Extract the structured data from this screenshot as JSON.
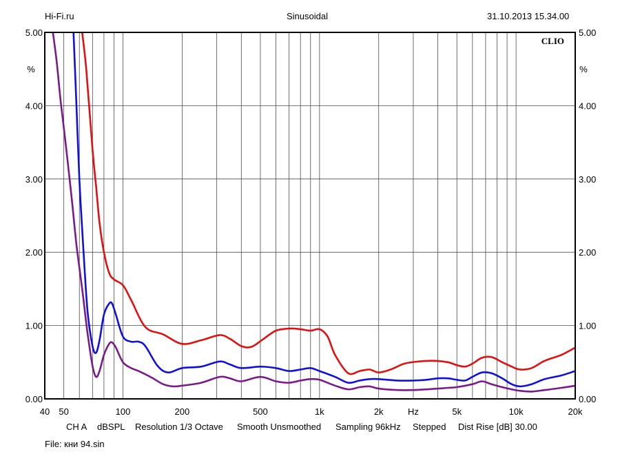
{
  "header": {
    "left": "Hi-Fi.ru",
    "center": "Sinusoidal",
    "right": "31.10.2013 15.34.00"
  },
  "brand": "CLIO",
  "footer": {
    "channel": "CH A",
    "unit": "dBSPL",
    "resolution": "Resolution 1/3 Octave",
    "smooth": "Smooth Unsmoothed",
    "sampling": "Sampling 96kHz",
    "mode": "Stepped",
    "dist_rise": "Dist Rise [dB] 30.00",
    "file": "File: кни 94.sin"
  },
  "chart_data": {
    "type": "line",
    "x_scale": "log",
    "xlim": [
      40,
      20000
    ],
    "ylim": [
      0,
      5
    ],
    "grid": true,
    "y_unit_label": "%",
    "x_unit_label": "Hz",
    "x_unit_label_at": 3000,
    "x_ticks": [
      {
        "value": 40,
        "label": "40"
      },
      {
        "value": 50,
        "label": "50"
      },
      {
        "value": 100,
        "label": "100"
      },
      {
        "value": 200,
        "label": "200"
      },
      {
        "value": 500,
        "label": "500"
      },
      {
        "value": 1000,
        "label": "1k"
      },
      {
        "value": 2000,
        "label": "2k"
      },
      {
        "value": 5000,
        "label": "5k"
      },
      {
        "value": 10000,
        "label": "10k"
      },
      {
        "value": 20000,
        "label": "20k"
      }
    ],
    "x_gridlines": [
      50,
      60,
      70,
      80,
      90,
      100,
      200,
      300,
      400,
      500,
      600,
      700,
      800,
      900,
      1000,
      2000,
      3000,
      4000,
      5000,
      6000,
      7000,
      8000,
      9000,
      10000
    ],
    "y_ticks": [
      {
        "value": 0,
        "label": "0.00"
      },
      {
        "value": 1,
        "label": "1.00"
      },
      {
        "value": 2,
        "label": "2.00"
      },
      {
        "value": 3,
        "label": "3.00"
      },
      {
        "value": 4,
        "label": "4.00"
      },
      {
        "value": 5,
        "label": "5.00"
      }
    ],
    "series": [
      {
        "color": "#e01010",
        "x": [
          62,
          65,
          70,
          73,
          76,
          80,
          85,
          90,
          100,
          110,
          130,
          160,
          200,
          250,
          310,
          350,
          400,
          450,
          520,
          600,
          700,
          800,
          900,
          1000,
          1100,
          1200,
          1400,
          1600,
          1800,
          2000,
          2300,
          2700,
          3200,
          3800,
          4500,
          5000,
          5500,
          6000,
          6700,
          7500,
          8500,
          9500,
          10500,
          12000,
          14000,
          17000,
          20000
        ],
        "y": [
          5.0,
          4.5,
          3.4,
          2.9,
          2.4,
          2.0,
          1.72,
          1.63,
          1.55,
          1.35,
          0.98,
          0.88,
          0.75,
          0.8,
          0.87,
          0.82,
          0.72,
          0.71,
          0.82,
          0.93,
          0.96,
          0.95,
          0.93,
          0.95,
          0.85,
          0.6,
          0.35,
          0.38,
          0.4,
          0.36,
          0.4,
          0.48,
          0.51,
          0.52,
          0.5,
          0.46,
          0.44,
          0.48,
          0.56,
          0.57,
          0.5,
          0.44,
          0.4,
          0.42,
          0.52,
          0.6,
          0.7
        ]
      },
      {
        "color": "#1010dd",
        "x": [
          56,
          58,
          60,
          63,
          66,
          70,
          73,
          76,
          80,
          85,
          88,
          92,
          100,
          110,
          120,
          130,
          150,
          170,
          200,
          250,
          310,
          350,
          400,
          500,
          600,
          700,
          800,
          900,
          1000,
          1200,
          1400,
          1600,
          1800,
          2000,
          2500,
          3000,
          3500,
          4000,
          4500,
          5000,
          5500,
          6000,
          6700,
          7500,
          8500,
          9500,
          10500,
          12000,
          14000,
          17000,
          20000
        ],
        "y": [
          5.0,
          4.0,
          3.0,
          2.0,
          1.2,
          0.72,
          0.63,
          0.8,
          1.15,
          1.3,
          1.3,
          1.15,
          0.85,
          0.78,
          0.78,
          0.72,
          0.45,
          0.36,
          0.42,
          0.44,
          0.51,
          0.47,
          0.42,
          0.44,
          0.42,
          0.38,
          0.4,
          0.42,
          0.38,
          0.3,
          0.22,
          0.25,
          0.27,
          0.27,
          0.25,
          0.25,
          0.26,
          0.28,
          0.28,
          0.26,
          0.25,
          0.3,
          0.36,
          0.35,
          0.28,
          0.2,
          0.17,
          0.2,
          0.27,
          0.32,
          0.38
        ]
      },
      {
        "color": "#7a1a8a",
        "x": [
          44,
          46,
          48,
          50,
          52,
          55,
          58,
          62,
          66,
          70,
          73,
          76,
          80,
          85,
          88,
          92,
          100,
          110,
          120,
          140,
          160,
          180,
          200,
          250,
          310,
          350,
          400,
          500,
          600,
          700,
          800,
          900,
          1000,
          1200,
          1400,
          1600,
          1800,
          2000,
          2500,
          3000,
          3500,
          4000,
          4500,
          5000,
          6000,
          6700,
          7500,
          8500,
          9500,
          10500,
          12000,
          14000,
          17000,
          20000
        ],
        "y": [
          5.0,
          4.6,
          4.1,
          3.7,
          3.3,
          2.7,
          2.1,
          1.5,
          0.9,
          0.45,
          0.3,
          0.38,
          0.6,
          0.75,
          0.77,
          0.7,
          0.5,
          0.42,
          0.38,
          0.29,
          0.2,
          0.17,
          0.18,
          0.22,
          0.3,
          0.28,
          0.24,
          0.3,
          0.24,
          0.22,
          0.25,
          0.27,
          0.26,
          0.18,
          0.13,
          0.16,
          0.17,
          0.14,
          0.12,
          0.12,
          0.13,
          0.14,
          0.15,
          0.16,
          0.2,
          0.24,
          0.2,
          0.16,
          0.13,
          0.11,
          0.1,
          0.12,
          0.15,
          0.18
        ]
      }
    ]
  }
}
